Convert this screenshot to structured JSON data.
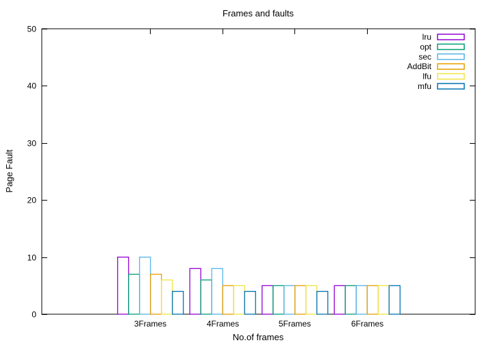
{
  "chart_data": {
    "type": "bar",
    "title": "Frames and faults",
    "xlabel": "No.of frames",
    "ylabel": "Page Fault",
    "ylim": [
      0,
      50
    ],
    "yticks": [
      0,
      10,
      20,
      30,
      40,
      50
    ],
    "grid": false,
    "legend": "top-right",
    "categories": [
      "3Frames",
      "4Frames",
      "5Frames",
      "6Frames"
    ],
    "series": [
      {
        "name": "lru",
        "color": "#9400d3",
        "values": [
          10,
          8,
          5,
          5
        ]
      },
      {
        "name": "opt",
        "color": "#009e73",
        "values": [
          7,
          6,
          5,
          5
        ]
      },
      {
        "name": "sec",
        "color": "#56b4e9",
        "values": [
          10,
          8,
          5,
          5
        ]
      },
      {
        "name": "AddBit",
        "color": "#e69f00",
        "values": [
          7,
          5,
          5,
          5
        ]
      },
      {
        "name": "lfu",
        "color": "#f0e442",
        "values": [
          6,
          5,
          5,
          5
        ]
      },
      {
        "name": "mfu",
        "color": "#0072b2",
        "values": [
          4,
          4,
          4,
          5
        ]
      }
    ]
  }
}
